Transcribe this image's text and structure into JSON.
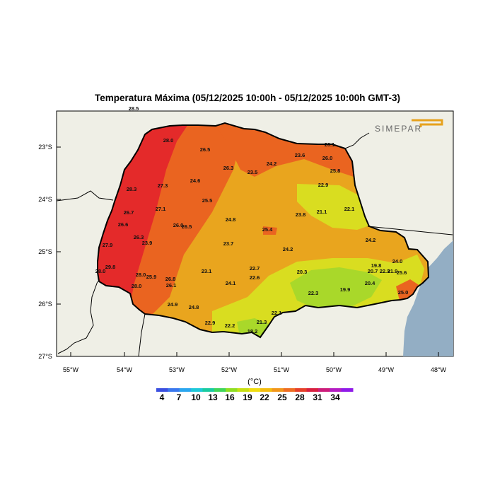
{
  "title": "Temperatura Máxima (05/12/2025 10:00h - 05/12/2025 10:00h GMT-3)",
  "logo_text": "SIMEPAR",
  "lat_ticks": [
    "23°S",
    "24°S",
    "25°S",
    "26°S",
    "27°S"
  ],
  "lon_ticks": [
    "55°W",
    "54°W",
    "53°W",
    "52°W",
    "51°W",
    "50°W",
    "49°W",
    "48°W"
  ],
  "colorbar": {
    "unit": "(°C)",
    "labels": [
      "4",
      "7",
      "10",
      "13",
      "16",
      "19",
      "22",
      "25",
      "28",
      "31",
      "34"
    ],
    "colors": [
      "#3a4fe0",
      "#3a78ee",
      "#2aa6ef",
      "#1ec8d8",
      "#19cba0",
      "#3fd55a",
      "#8fde22",
      "#c7e012",
      "#f0dd10",
      "#f3bc0e",
      "#f2961a",
      "#ee6d22",
      "#e6402a",
      "#d81f3f",
      "#cc1c7a",
      "#b41cc3",
      "#8f1ae8"
    ]
  },
  "colors": {
    "background_land": "#efefe6",
    "ocean": "#93aec4",
    "temp_hot": "#e42a2a",
    "temp_warm": "#ea6420",
    "temp_mild": "#e9a51e",
    "temp_cool": "#d9dd20",
    "temp_coolest": "#a9d82a"
  },
  "stations": [
    {
      "value": "28.5"
    },
    {
      "value": "28.0"
    },
    {
      "value": "26.5"
    },
    {
      "value": "26.1"
    },
    {
      "value": "23.6"
    },
    {
      "value": "26.0"
    },
    {
      "value": "26.3"
    },
    {
      "value": "24.2"
    },
    {
      "value": "23.5"
    },
    {
      "value": "25.8"
    },
    {
      "value": "24.6"
    },
    {
      "value": "27.3"
    },
    {
      "value": "28.3"
    },
    {
      "value": "22.9"
    },
    {
      "value": "25.5"
    },
    {
      "value": "27.1"
    },
    {
      "value": "26.7"
    },
    {
      "value": "23.8"
    },
    {
      "value": "21.1"
    },
    {
      "value": "22.1"
    },
    {
      "value": "26.6"
    },
    {
      "value": "24.8"
    },
    {
      "value": "26.0"
    },
    {
      "value": "26.5"
    },
    {
      "value": "25.4"
    },
    {
      "value": "26.3"
    },
    {
      "value": "23.9"
    },
    {
      "value": "27.9"
    },
    {
      "value": "23.7"
    },
    {
      "value": "24.2"
    },
    {
      "value": "24.2"
    },
    {
      "value": "19.8"
    },
    {
      "value": "24.0"
    },
    {
      "value": "29.8"
    },
    {
      "value": "22.7"
    },
    {
      "value": "23.1"
    },
    {
      "value": "20.3"
    },
    {
      "value": "20.7"
    },
    {
      "value": "22.3"
    },
    {
      "value": "21.9"
    },
    {
      "value": "25.6"
    },
    {
      "value": "28.0"
    },
    {
      "value": "25.9"
    },
    {
      "value": "26.8"
    },
    {
      "value": "22.6"
    },
    {
      "value": "24.1"
    },
    {
      "value": "20.4"
    },
    {
      "value": "28.0"
    },
    {
      "value": "26.1"
    },
    {
      "value": "22.3"
    },
    {
      "value": "19.9"
    },
    {
      "value": "25.0"
    },
    {
      "value": "24.9"
    },
    {
      "value": "24.8"
    },
    {
      "value": "22.1"
    },
    {
      "value": "21.3"
    },
    {
      "value": "22.9"
    },
    {
      "value": "22.2"
    },
    {
      "value": "18.2"
    },
    {
      "value": "28.0"
    }
  ]
}
